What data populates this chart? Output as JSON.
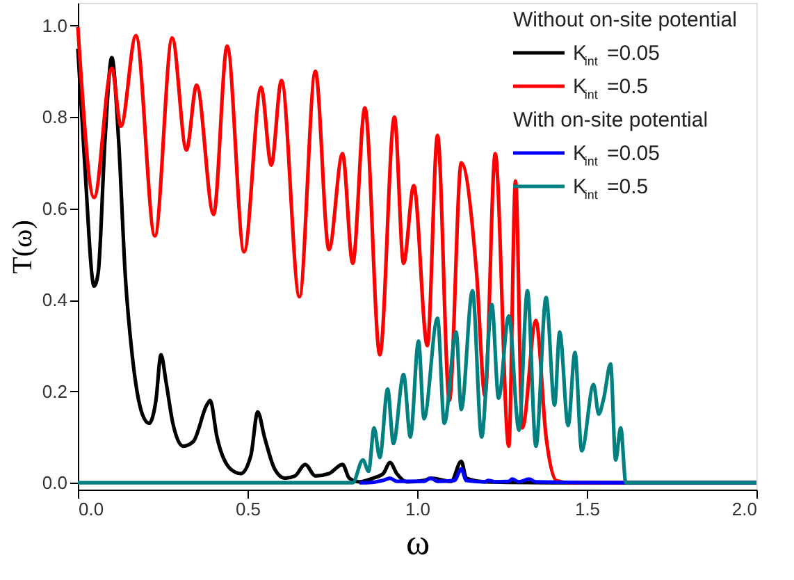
{
  "chart_data": {
    "type": "line",
    "xlabel": "ω",
    "ylabel": "T(ω)",
    "xlim": [
      0,
      2.0
    ],
    "ylim": [
      -0.015,
      1.05
    ],
    "xticks": [
      {
        "value": 0,
        "label": "0.0"
      },
      {
        "value": 0.5,
        "label": "0.5"
      },
      {
        "value": 1.0,
        "label": "1.0"
      },
      {
        "value": 1.5,
        "label": "1.5"
      },
      {
        "value": 2.0,
        "label": "2.0"
      }
    ],
    "yticks": [
      {
        "value": 0,
        "label": "0.0"
      },
      {
        "value": 0.2,
        "label": "0.2"
      },
      {
        "value": 0.4,
        "label": "0.4"
      },
      {
        "value": 0.6,
        "label": "0.6"
      },
      {
        "value": 0.8,
        "label": "0.8"
      },
      {
        "value": 1.0,
        "label": "1.0"
      }
    ],
    "annotations": [
      "Without on-site potential",
      "With on-site potential"
    ],
    "legend": "top right",
    "grid": false,
    "marker": "none",
    "line_style": "solid",
    "series": [
      {
        "name": "K$_{int}$=0.05",
        "color": "#000000",
        "x": [
          0,
          0.02,
          0.048,
          0.06,
          0.08,
          0.1,
          0.12,
          0.14,
          0.16,
          0.19,
          0.21,
          0.23,
          0.245,
          0.26,
          0.28,
          0.31,
          0.34,
          0.38,
          0.39,
          0.41,
          0.45,
          0.48,
          0.51,
          0.53,
          0.55,
          0.58,
          0.61,
          0.64,
          0.67,
          0.7,
          0.74,
          0.78,
          0.8,
          0.83,
          0.87,
          0.9,
          0.92,
          0.94,
          0.97,
          1.02,
          1.04,
          1.1,
          1.13,
          1.145,
          1.2,
          1.4,
          2.0
        ],
        "values": [
          0.95,
          0.7,
          0.43,
          0.46,
          0.75,
          0.93,
          0.75,
          0.45,
          0.28,
          0.15,
          0.13,
          0.18,
          0.28,
          0.22,
          0.13,
          0.08,
          0.09,
          0.17,
          0.18,
          0.1,
          0.03,
          0.02,
          0.06,
          0.155,
          0.1,
          0.03,
          0.01,
          0.015,
          0.04,
          0.015,
          0.02,
          0.04,
          0.01,
          0.002,
          0.01,
          0.02,
          0.044,
          0.02,
          0.002,
          0.005,
          0.01,
          0.003,
          0.047,
          0.01,
          0.002,
          0,
          0
        ]
      },
      {
        "name": "K$_{int}$=0.5",
        "color": "#ff0000",
        "x": [
          0,
          0.048,
          0.1,
          0.127,
          0.171,
          0.227,
          0.278,
          0.32,
          0.35,
          0.4,
          0.44,
          0.49,
          0.54,
          0.57,
          0.6,
          0.653,
          0.7,
          0.74,
          0.78,
          0.81,
          0.846,
          0.89,
          0.933,
          0.96,
          0.99,
          1.03,
          1.06,
          1.095,
          1.13,
          1.175,
          1.2,
          1.23,
          1.27,
          1.29,
          1.31,
          1.35,
          1.38,
          1.41,
          1.45,
          2.0
        ],
        "values": [
          0.997,
          0.624,
          0.907,
          0.78,
          0.978,
          0.54,
          0.973,
          0.728,
          0.87,
          0.587,
          0.955,
          0.505,
          0.865,
          0.695,
          0.88,
          0.407,
          0.9,
          0.51,
          0.72,
          0.48,
          0.82,
          0.28,
          0.8,
          0.48,
          0.65,
          0.3,
          0.76,
          0.18,
          0.7,
          0.46,
          0.19,
          0.72,
          0.08,
          0.66,
          0.12,
          0.355,
          0.1,
          0.005,
          0,
          0
        ]
      },
      {
        "name": "K$_{int}$=0.05",
        "color": "#0000ff",
        "x": [
          0.83,
          0.85,
          0.9,
          0.92,
          0.94,
          1.02,
          1.04,
          1.06,
          1.11,
          1.13,
          1.145,
          1.2,
          1.21,
          1.23,
          1.27,
          1.28,
          1.3,
          1.33,
          1.35,
          1.6,
          2.0
        ],
        "values": [
          0,
          0,
          0.005,
          0.01,
          0.003,
          0.003,
          0.01,
          0.003,
          0.005,
          0.03,
          0.005,
          0.002,
          0.005,
          0.002,
          0.003,
          0.008,
          0.002,
          0.008,
          0.002,
          0,
          0
        ]
      },
      {
        "name": "K$_{int}$=0.5",
        "color": "#008080",
        "x": [
          0,
          0.81,
          0.84,
          0.857,
          0.873,
          0.89,
          0.913,
          0.93,
          0.96,
          0.98,
          1.004,
          1.02,
          1.06,
          1.08,
          1.115,
          1.13,
          1.163,
          1.19,
          1.22,
          1.24,
          1.27,
          1.3,
          1.325,
          1.35,
          1.38,
          1.405,
          1.42,
          1.445,
          1.465,
          1.485,
          1.52,
          1.535,
          1.55,
          1.57,
          1.585,
          1.6,
          1.615,
          2.0
        ],
        "values": [
          0,
          0,
          0.05,
          0.025,
          0.12,
          0.055,
          0.205,
          0.086,
          0.237,
          0.1,
          0.31,
          0.14,
          0.36,
          0.13,
          0.33,
          0.16,
          0.42,
          0.1,
          0.39,
          0.185,
          0.365,
          0.115,
          0.42,
          0.08,
          0.405,
          0.17,
          0.33,
          0.125,
          0.285,
          0.07,
          0.215,
          0.15,
          0.185,
          0.26,
          0.05,
          0.12,
          0,
          0
        ]
      }
    ]
  }
}
